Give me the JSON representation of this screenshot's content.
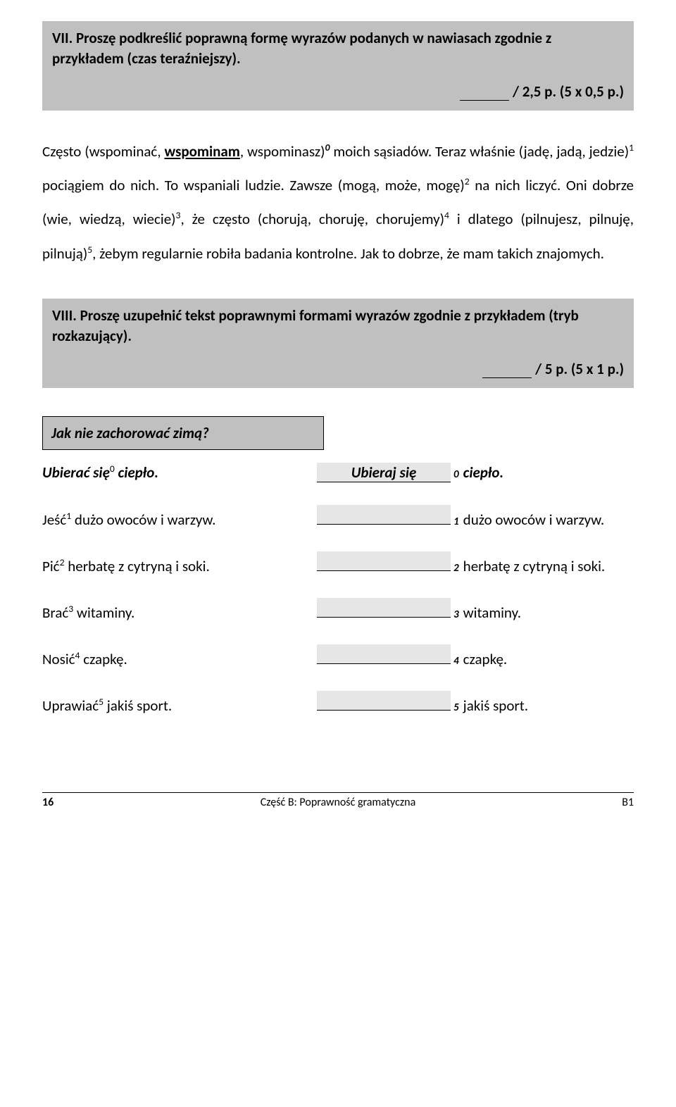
{
  "section7": {
    "title": "VII. Proszę podkreślić poprawną formę wyrazów podanych w nawiasach zgodnie z przykładem (czas teraźniejszy).",
    "score": "/ 2,5 p. (5 x 0,5 p.)"
  },
  "paragraph": {
    "t1": "Często (wspominać, ",
    "u1": "wspominam",
    "t2": ", wspominasz)",
    "s0": "0",
    "t3": " moich sąsiadów. Teraz właśnie (jadę, jadą, jedzie)",
    "s1": "1",
    "t4": " pociągiem do nich. To wspaniali ludzie. Zawsze (mogą, może, mogę)",
    "s2": "2",
    "t5": " na nich liczyć. Oni dobrze (wie, wiedzą, wiecie)",
    "s3": "3",
    "t6": ", że często (chorują, choruję, chorujemy)",
    "s4": "4",
    "t7": " i dlatego (pilnujesz, pilnuję, pilnują)",
    "s5": "5",
    "t8": ", żebym regularnie robiła badania kontrolne. Jak to dobrze, że mam takich znajomych."
  },
  "section8": {
    "title": "VIII. Proszę uzupełnić tekst poprawnymi formami wyrazów zgodnie z przykładem (tryb rozkazujący).",
    "score": "/ 5 p. (5 x 1 p.)"
  },
  "tableHeader": "Jak nie zachorować zimą?",
  "rows": [
    {
      "left_pre": "Ubierać się",
      "left_sup": "0",
      "left_post": " ciepło.",
      "fill": "Ubieraj się",
      "num": "0",
      "right": "ciepło.",
      "bold": true
    },
    {
      "left_pre": "Jeść",
      "left_sup": "1",
      "left_post": " dużo owoców i warzyw.",
      "fill": "",
      "num": "1",
      "right": "dużo owoców i warzyw.",
      "bold": false
    },
    {
      "left_pre": "Pić",
      "left_sup": "2",
      "left_post": " herbatę z cytryną i soki.",
      "fill": "",
      "num": "2",
      "right": "herbatę z cytryną i soki.",
      "bold": false
    },
    {
      "left_pre": "Brać",
      "left_sup": "3",
      "left_post": " witaminy.",
      "fill": "",
      "num": "3",
      "right": "witaminy.",
      "bold": false
    },
    {
      "left_pre": "Nosić",
      "left_sup": "4",
      "left_post": " czapkę.",
      "fill": "",
      "num": "4",
      "right": "czapkę.",
      "bold": false
    },
    {
      "left_pre": "Uprawiać",
      "left_sup": "5",
      "left_post": " jakiś sport.",
      "fill": "",
      "num": "5",
      "right": "jakiś sport.",
      "bold": false
    }
  ],
  "footer": {
    "page": "16",
    "center": "Część B: Poprawność gramatyczna",
    "right": "B1"
  }
}
